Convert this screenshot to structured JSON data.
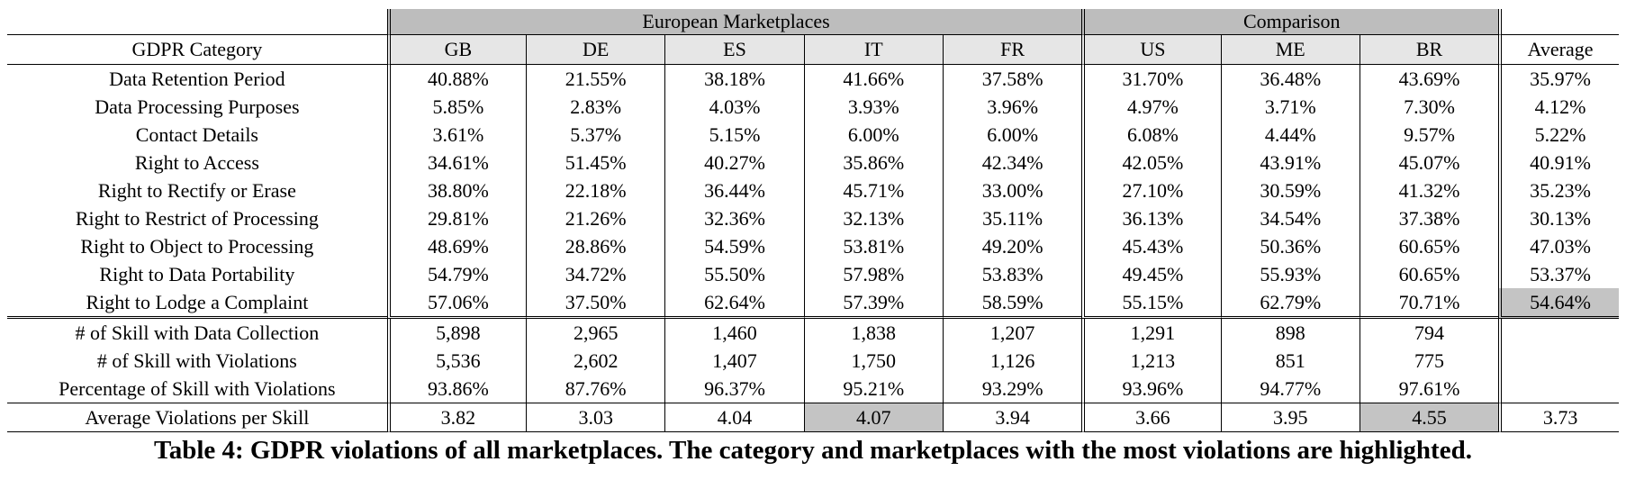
{
  "table": {
    "group_headers": {
      "european": "European Marketplaces",
      "comparison": "Comparison"
    },
    "columns": {
      "category": "GDPR Category",
      "markets": [
        "GB",
        "DE",
        "ES",
        "IT",
        "FR",
        "US",
        "ME",
        "BR"
      ],
      "average": "Average"
    },
    "category_rows": [
      {
        "label": "Data Retention Period",
        "values": [
          "40.88%",
          "21.55%",
          "38.18%",
          "41.66%",
          "37.58%",
          "31.70%",
          "36.48%",
          "43.69%"
        ],
        "average": "35.97%"
      },
      {
        "label": "Data Processing Purposes",
        "values": [
          "5.85%",
          "2.83%",
          "4.03%",
          "3.93%",
          "3.96%",
          "4.97%",
          "3.71%",
          "7.30%"
        ],
        "average": "4.12%"
      },
      {
        "label": "Contact Details",
        "values": [
          "3.61%",
          "5.37%",
          "5.15%",
          "6.00%",
          "6.00%",
          "6.08%",
          "4.44%",
          "9.57%"
        ],
        "average": "5.22%"
      },
      {
        "label": "Right to Access",
        "values": [
          "34.61%",
          "51.45%",
          "40.27%",
          "35.86%",
          "42.34%",
          "42.05%",
          "43.91%",
          "45.07%"
        ],
        "average": "40.91%"
      },
      {
        "label": "Right to Rectify or Erase",
        "values": [
          "38.80%",
          "22.18%",
          "36.44%",
          "45.71%",
          "33.00%",
          "27.10%",
          "30.59%",
          "41.32%"
        ],
        "average": "35.23%"
      },
      {
        "label": "Right to Restrict of Processing",
        "values": [
          "29.81%",
          "21.26%",
          "32.36%",
          "32.13%",
          "35.11%",
          "36.13%",
          "34.54%",
          "37.38%"
        ],
        "average": "30.13%"
      },
      {
        "label": "Right to Object to Processing",
        "values": [
          "48.69%",
          "28.86%",
          "54.59%",
          "53.81%",
          "49.20%",
          "45.43%",
          "50.36%",
          "60.65%"
        ],
        "average": "47.03%"
      },
      {
        "label": "Right to Data Portability",
        "values": [
          "54.79%",
          "34.72%",
          "55.50%",
          "57.98%",
          "53.83%",
          "49.45%",
          "55.93%",
          "60.65%"
        ],
        "average": "53.37%"
      },
      {
        "label": "Right to Lodge a Complaint",
        "values": [
          "57.06%",
          "37.50%",
          "62.64%",
          "57.39%",
          "58.59%",
          "55.15%",
          "62.79%",
          "70.71%"
        ],
        "average": "54.64%"
      }
    ],
    "count_rows": [
      {
        "label": "# of Skill with Data Collection",
        "values": [
          "5,898",
          "2,965",
          "1,460",
          "1,838",
          "1,207",
          "1,291",
          "898",
          "794"
        ],
        "average": ""
      },
      {
        "label": "# of Skill with Violations",
        "values": [
          "5,536",
          "2,602",
          "1,407",
          "1,750",
          "1,126",
          "1,213",
          "851",
          "775"
        ],
        "average": ""
      },
      {
        "label": "Percentage of Skill with Violations",
        "values": [
          "93.86%",
          "87.76%",
          "96.37%",
          "95.21%",
          "93.29%",
          "93.96%",
          "94.77%",
          "97.61%"
        ],
        "average": ""
      }
    ],
    "average_row": {
      "label": "Average Violations per Skill",
      "values": [
        "3.82",
        "3.03",
        "4.04",
        "4.07",
        "3.94",
        "3.66",
        "3.95",
        "4.55"
      ],
      "average": "3.73"
    },
    "highlight_color": "#c4c4c4",
    "group_header_color": "#bdbdbd",
    "column_header_color": "#e6e6e6"
  },
  "caption": "Table 4: GDPR violations of all marketplaces. The category and marketplaces with the most violations are highlighted."
}
